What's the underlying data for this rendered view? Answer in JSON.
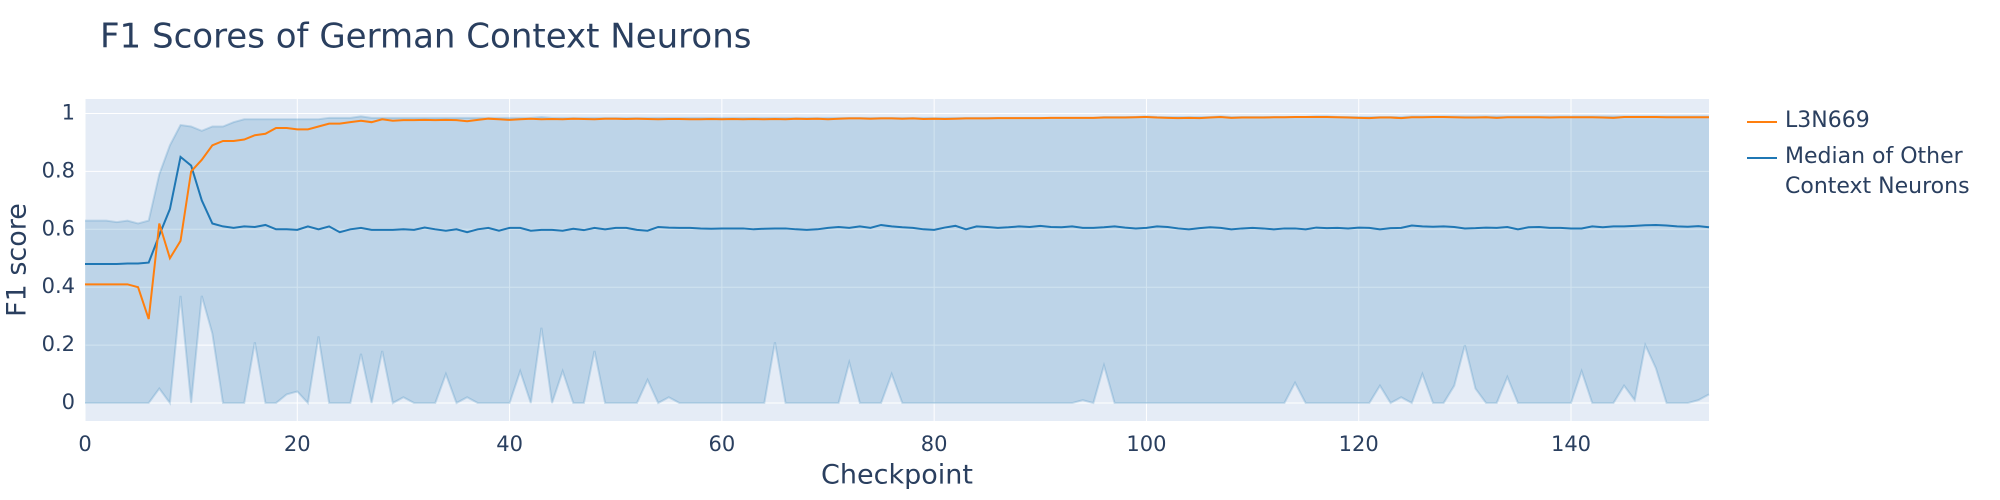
{
  "chart_data": {
    "type": "line",
    "title": "F1 Scores of German Context Neurons",
    "x_label": "Checkpoint",
    "y_label": "F1 score",
    "xlim": [
      0,
      153
    ],
    "ylim": [
      -0.062,
      1.05
    ],
    "xticks": [
      0,
      20,
      40,
      60,
      80,
      100,
      120,
      140
    ],
    "yticks": [
      0,
      0.2,
      0.4,
      0.6,
      0.8,
      1
    ],
    "grid": true,
    "background": "#e5ecf6",
    "legend": "right",
    "x": [
      0,
      1,
      2,
      3,
      4,
      5,
      6,
      7,
      8,
      9,
      10,
      11,
      12,
      13,
      14,
      15,
      16,
      17,
      18,
      19,
      20,
      21,
      22,
      23,
      24,
      25,
      26,
      27,
      28,
      29,
      30,
      31,
      32,
      33,
      34,
      35,
      36,
      37,
      38,
      39,
      40,
      41,
      42,
      43,
      44,
      45,
      46,
      47,
      48,
      49,
      50,
      51,
      52,
      53,
      54,
      55,
      56,
      57,
      58,
      59,
      60,
      61,
      62,
      63,
      64,
      65,
      66,
      67,
      68,
      69,
      70,
      71,
      72,
      73,
      74,
      75,
      76,
      77,
      78,
      79,
      80,
      81,
      82,
      83,
      84,
      85,
      86,
      87,
      88,
      89,
      90,
      91,
      92,
      93,
      94,
      95,
      96,
      97,
      98,
      99,
      100,
      101,
      102,
      103,
      104,
      105,
      106,
      107,
      108,
      109,
      110,
      111,
      112,
      113,
      114,
      115,
      116,
      117,
      118,
      119,
      120,
      121,
      122,
      123,
      124,
      125,
      126,
      127,
      128,
      129,
      130,
      131,
      132,
      133,
      134,
      135,
      136,
      137,
      138,
      139,
      140,
      141,
      142,
      143,
      144,
      145,
      146,
      147,
      148,
      149,
      150,
      151,
      152,
      153
    ],
    "band": {
      "color": "rgba(31,119,180,0.2)",
      "upper": [
        0.63,
        0.63,
        0.63,
        0.625,
        0.63,
        0.62,
        0.63,
        0.79,
        0.89,
        0.96,
        0.955,
        0.94,
        0.955,
        0.955,
        0.97,
        0.98,
        0.98,
        0.98,
        0.98,
        0.98,
        0.98,
        0.98,
        0.98,
        0.985,
        0.985,
        0.985,
        0.99,
        0.985,
        0.985,
        0.985,
        0.985,
        0.985,
        0.985,
        0.985,
        0.985,
        0.985,
        0.985,
        0.985,
        0.985,
        0.985,
        0.985,
        0.985,
        0.985,
        0.988,
        0.985,
        0.985,
        0.985,
        0.985,
        0.985,
        0.985,
        0.985,
        0.985,
        0.985,
        0.985,
        0.985,
        0.985,
        0.985,
        0.985,
        0.985,
        0.985,
        0.985,
        0.985,
        0.985,
        0.985,
        0.985,
        0.985,
        0.985,
        0.985,
        0.985,
        0.985,
        0.985,
        0.985,
        0.985,
        0.985,
        0.985,
        0.985,
        0.985,
        0.985,
        0.985,
        0.985,
        0.985,
        0.985,
        0.985,
        0.985,
        0.985,
        0.985,
        0.985,
        0.985,
        0.985,
        0.985,
        0.985,
        0.985,
        0.985,
        0.985,
        0.985,
        0.985,
        0.988,
        0.988,
        0.988,
        0.988,
        0.99,
        0.988,
        0.988,
        0.988,
        0.988,
        0.988,
        0.988,
        0.99,
        0.988,
        0.988,
        0.988,
        0.988,
        0.988,
        0.988,
        0.988,
        0.988,
        0.99,
        0.99,
        0.988,
        0.988,
        0.988,
        0.988,
        0.988,
        0.988,
        0.988,
        0.99,
        0.99,
        0.99,
        0.99,
        0.99,
        0.99,
        0.99,
        0.99,
        0.99,
        0.99,
        0.99,
        0.99,
        0.99,
        0.99,
        0.99,
        0.99,
        0.99,
        0.99,
        0.99,
        0.99,
        0.99,
        0.99,
        0.99,
        0.99,
        0.99,
        0.99,
        0.99,
        0.99,
        0.99
      ],
      "lower": [
        0,
        0,
        0,
        0,
        0,
        0,
        0,
        0.05,
        0,
        0.37,
        0,
        0.37,
        0.24,
        0,
        0,
        0,
        0.21,
        0,
        0,
        0.03,
        0.04,
        0,
        0.23,
        0,
        0,
        0,
        0.17,
        0,
        0.18,
        0,
        0.02,
        0,
        0,
        0,
        0.1,
        0,
        0.02,
        0,
        0,
        0,
        0,
        0.11,
        0,
        0.26,
        0,
        0.11,
        0,
        0,
        0.18,
        0,
        0,
        0,
        0,
        0.08,
        0,
        0.02,
        0,
        0,
        0,
        0,
        0,
        0,
        0,
        0,
        0,
        0.21,
        0,
        0,
        0,
        0,
        0,
        0,
        0.14,
        0,
        0,
        0,
        0.1,
        0,
        0,
        0,
        0,
        0,
        0,
        0,
        0,
        0,
        0,
        0,
        0,
        0,
        0,
        0,
        0,
        0,
        0.01,
        0,
        0.13,
        0,
        0,
        0,
        0,
        0,
        0,
        0,
        0,
        0,
        0,
        0,
        0,
        0,
        0,
        0,
        0,
        0,
        0.07,
        0,
        0,
        0,
        0,
        0,
        0,
        0,
        0.06,
        0,
        0.02,
        0,
        0.1,
        0,
        0,
        0.06,
        0.2,
        0.05,
        0,
        0,
        0.09,
        0,
        0,
        0,
        0,
        0,
        0,
        0.11,
        0,
        0,
        0,
        0.06,
        0.01,
        0.2,
        0.12,
        0,
        0,
        0,
        0.01,
        0.03
      ]
    },
    "series": [
      {
        "name": "L3N669",
        "color": "#ff7f0e",
        "values": [
          0.41,
          0.41,
          0.41,
          0.41,
          0.41,
          0.4,
          0.29,
          0.62,
          0.5,
          0.56,
          0.8,
          0.84,
          0.89,
          0.905,
          0.905,
          0.91,
          0.925,
          0.93,
          0.95,
          0.95,
          0.945,
          0.945,
          0.955,
          0.965,
          0.965,
          0.97,
          0.975,
          0.97,
          0.98,
          0.975,
          0.977,
          0.977,
          0.978,
          0.977,
          0.978,
          0.977,
          0.973,
          0.978,
          0.982,
          0.98,
          0.978,
          0.98,
          0.982,
          0.98,
          0.981,
          0.98,
          0.982,
          0.981,
          0.98,
          0.982,
          0.982,
          0.981,
          0.982,
          0.981,
          0.98,
          0.981,
          0.981,
          0.98,
          0.98,
          0.981,
          0.98,
          0.981,
          0.98,
          0.981,
          0.98,
          0.981,
          0.98,
          0.982,
          0.981,
          0.982,
          0.98,
          0.982,
          0.983,
          0.983,
          0.982,
          0.983,
          0.983,
          0.982,
          0.983,
          0.981,
          0.982,
          0.981,
          0.982,
          0.983,
          0.983,
          0.983,
          0.984,
          0.984,
          0.984,
          0.984,
          0.984,
          0.985,
          0.985,
          0.985,
          0.985,
          0.985,
          0.986,
          0.986,
          0.986,
          0.987,
          0.988,
          0.986,
          0.985,
          0.984,
          0.985,
          0.984,
          0.986,
          0.988,
          0.985,
          0.986,
          0.986,
          0.986,
          0.987,
          0.987,
          0.988,
          0.988,
          0.988,
          0.988,
          0.987,
          0.986,
          0.985,
          0.984,
          0.986,
          0.986,
          0.984,
          0.987,
          0.987,
          0.988,
          0.988,
          0.987,
          0.986,
          0.986,
          0.987,
          0.985,
          0.987,
          0.987,
          0.987,
          0.987,
          0.986,
          0.987,
          0.987,
          0.987,
          0.987,
          0.986,
          0.985,
          0.988,
          0.988,
          0.988,
          0.988,
          0.987,
          0.987,
          0.987,
          0.987,
          0.987
        ]
      },
      {
        "name": "Median of Other Context Neurons",
        "color": "#1f77b4",
        "values": [
          0.48,
          0.48,
          0.48,
          0.48,
          0.482,
          0.482,
          0.485,
          0.58,
          0.67,
          0.85,
          0.82,
          0.7,
          0.62,
          0.61,
          0.605,
          0.61,
          0.608,
          0.615,
          0.6,
          0.6,
          0.598,
          0.61,
          0.6,
          0.61,
          0.59,
          0.6,
          0.605,
          0.598,
          0.598,
          0.598,
          0.6,
          0.598,
          0.606,
          0.6,
          0.595,
          0.6,
          0.59,
          0.6,
          0.605,
          0.595,
          0.605,
          0.605,
          0.595,
          0.598,
          0.598,
          0.595,
          0.602,
          0.597,
          0.605,
          0.6,
          0.605,
          0.605,
          0.598,
          0.595,
          0.608,
          0.606,
          0.605,
          0.605,
          0.603,
          0.602,
          0.603,
          0.603,
          0.603,
          0.6,
          0.602,
          0.603,
          0.603,
          0.6,
          0.598,
          0.6,
          0.605,
          0.608,
          0.605,
          0.61,
          0.605,
          0.615,
          0.61,
          0.607,
          0.605,
          0.6,
          0.598,
          0.606,
          0.612,
          0.6,
          0.61,
          0.608,
          0.605,
          0.607,
          0.61,
          0.608,
          0.612,
          0.608,
          0.607,
          0.61,
          0.605,
          0.605,
          0.607,
          0.61,
          0.606,
          0.603,
          0.605,
          0.61,
          0.608,
          0.603,
          0.6,
          0.604,
          0.607,
          0.605,
          0.6,
          0.603,
          0.605,
          0.603,
          0.6,
          0.603,
          0.603,
          0.6,
          0.606,
          0.604,
          0.605,
          0.603,
          0.606,
          0.605,
          0.6,
          0.604,
          0.605,
          0.613,
          0.61,
          0.609,
          0.61,
          0.608,
          0.603,
          0.604,
          0.606,
          0.605,
          0.608,
          0.6,
          0.607,
          0.608,
          0.605,
          0.605,
          0.603,
          0.603,
          0.61,
          0.607,
          0.61,
          0.61,
          0.612,
          0.614,
          0.615,
          0.613,
          0.61,
          0.609,
          0.611,
          0.607
        ]
      }
    ]
  }
}
